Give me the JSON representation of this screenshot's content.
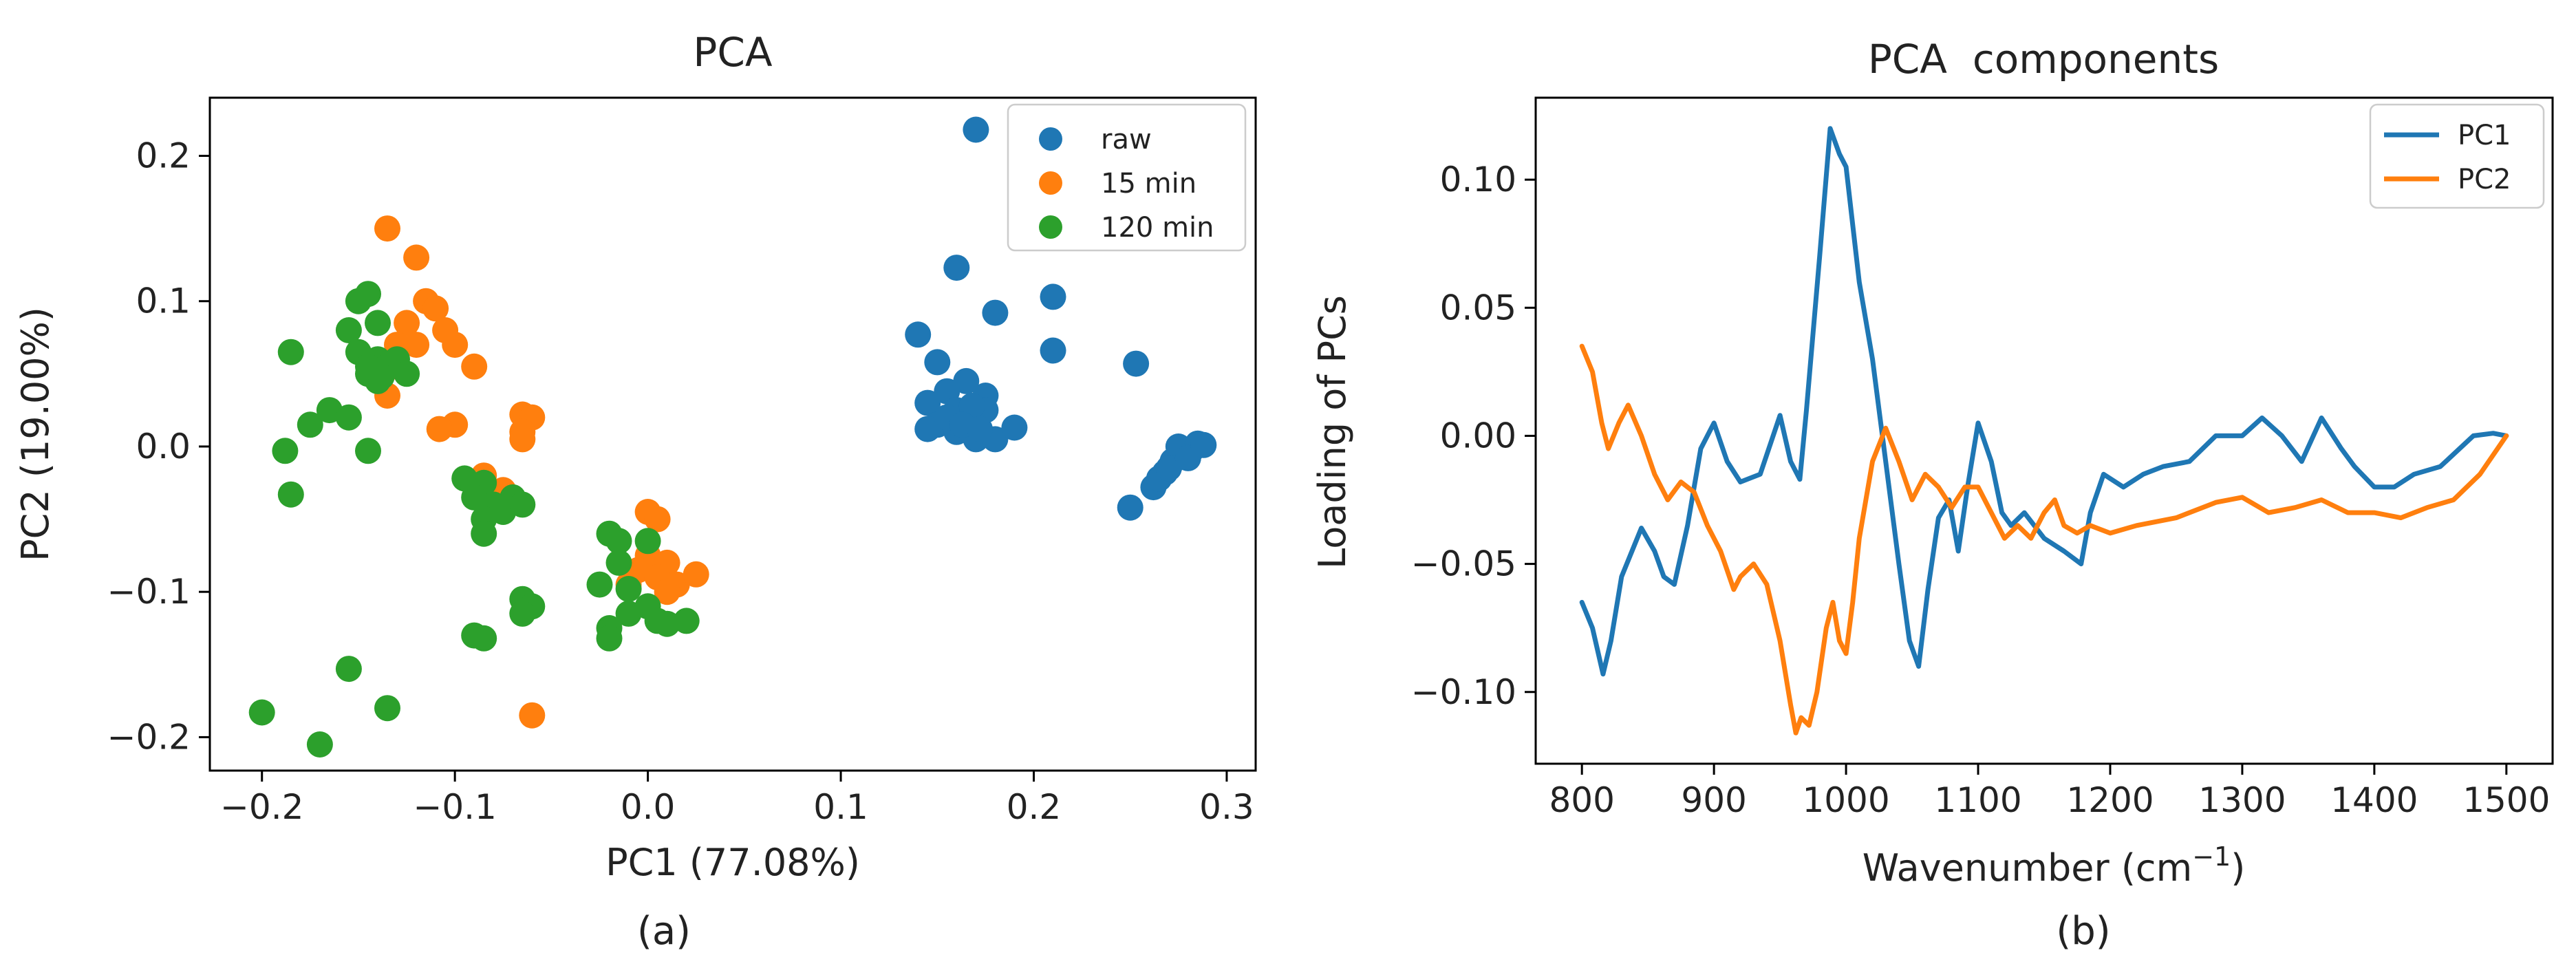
{
  "chart_data": [
    {
      "type": "scatter",
      "title": "PCA",
      "xlabel": "PC1 (77.08%)",
      "ylabel": "PC2 (19.00%)",
      "xlim": [
        -0.227,
        0.315
      ],
      "ylim": [
        -0.223,
        0.24
      ],
      "xticks": [
        -0.2,
        -0.1,
        0.0,
        0.1,
        0.2,
        0.3
      ],
      "xtick_labels": [
        "−0.2",
        "−0.1",
        "0.0",
        "0.1",
        "0.2",
        "0.3"
      ],
      "yticks": [
        -0.2,
        -0.1,
        0.0,
        0.1,
        0.2
      ],
      "ytick_labels": [
        "−0.2",
        "−0.1",
        "0.0",
        "0.1",
        "0.2"
      ],
      "legend_position": "top-right",
      "caption": "(a)",
      "series": [
        {
          "name": "raw",
          "color": "#1f77b4",
          "points": [
            [
              0.17,
              0.218
            ],
            [
              0.16,
              0.123
            ],
            [
              0.18,
              0.092
            ],
            [
              0.21,
              0.103
            ],
            [
              0.21,
              0.066
            ],
            [
              0.14,
              0.077
            ],
            [
              0.15,
              0.058
            ],
            [
              0.165,
              0.045
            ],
            [
              0.175,
              0.035
            ],
            [
              0.155,
              0.038
            ],
            [
              0.145,
              0.03
            ],
            [
              0.16,
              0.025
            ],
            [
              0.17,
              0.02
            ],
            [
              0.15,
              0.015
            ],
            [
              0.16,
              0.01
            ],
            [
              0.17,
              0.005
            ],
            [
              0.18,
              0.005
            ],
            [
              0.145,
              0.012
            ],
            [
              0.19,
              0.013
            ],
            [
              0.175,
              0.025
            ],
            [
              0.168,
              0.028
            ],
            [
              0.155,
              0.02
            ],
            [
              0.163,
              0.015
            ],
            [
              0.172,
              0.012
            ],
            [
              0.253,
              0.057
            ],
            [
              0.25,
              -0.042
            ],
            [
              0.262,
              -0.028
            ],
            [
              0.268,
              -0.018
            ],
            [
              0.272,
              -0.01
            ],
            [
              0.278,
              -0.005
            ],
            [
              0.282,
              -0.002
            ],
            [
              0.275,
              0.0
            ],
            [
              0.285,
              0.002
            ],
            [
              0.265,
              -0.022
            ],
            [
              0.27,
              -0.015
            ],
            [
              0.28,
              -0.008
            ],
            [
              0.288,
              0.001
            ]
          ]
        },
        {
          "name": "15 min",
          "color": "#ff7f0e",
          "points": [
            [
              -0.135,
              0.15
            ],
            [
              -0.12,
              0.13
            ],
            [
              -0.115,
              0.1
            ],
            [
              -0.11,
              0.095
            ],
            [
              -0.105,
              0.08
            ],
            [
              -0.125,
              0.085
            ],
            [
              -0.13,
              0.07
            ],
            [
              -0.12,
              0.07
            ],
            [
              -0.1,
              0.07
            ],
            [
              -0.09,
              0.055
            ],
            [
              -0.13,
              0.055
            ],
            [
              -0.135,
              0.035
            ],
            [
              -0.065,
              0.022
            ],
            [
              -0.06,
              0.02
            ],
            [
              -0.065,
              0.01
            ],
            [
              -0.065,
              0.005
            ],
            [
              -0.1,
              0.015
            ],
            [
              -0.108,
              0.012
            ],
            [
              -0.085,
              -0.02
            ],
            [
              -0.075,
              -0.03
            ],
            [
              -0.06,
              -0.185
            ],
            [
              0.0,
              -0.045
            ],
            [
              0.005,
              -0.05
            ],
            [
              0.0,
              -0.075
            ],
            [
              0.01,
              -0.08
            ],
            [
              -0.005,
              -0.085
            ],
            [
              0.005,
              -0.09
            ],
            [
              0.015,
              -0.095
            ],
            [
              0.025,
              -0.088
            ],
            [
              -0.01,
              -0.095
            ],
            [
              0.01,
              -0.1
            ]
          ]
        },
        {
          "name": "120 min",
          "color": "#2ca02c",
          "points": [
            [
              -0.185,
              0.065
            ],
            [
              -0.2,
              -0.183
            ],
            [
              -0.17,
              -0.205
            ],
            [
              -0.155,
              -0.153
            ],
            [
              -0.135,
              -0.18
            ],
            [
              -0.15,
              0.1
            ],
            [
              -0.145,
              0.105
            ],
            [
              -0.14,
              0.085
            ],
            [
              -0.155,
              0.08
            ],
            [
              -0.15,
              0.065
            ],
            [
              -0.14,
              0.06
            ],
            [
              -0.145,
              0.05
            ],
            [
              -0.135,
              0.055
            ],
            [
              -0.13,
              0.06
            ],
            [
              -0.125,
              0.05
            ],
            [
              -0.14,
              0.045
            ],
            [
              -0.145,
              0.055
            ],
            [
              -0.138,
              0.048
            ],
            [
              -0.165,
              0.025
            ],
            [
              -0.155,
              0.02
            ],
            [
              -0.175,
              0.015
            ],
            [
              -0.145,
              -0.003
            ],
            [
              -0.188,
              -0.003
            ],
            [
              -0.185,
              -0.033
            ],
            [
              -0.095,
              -0.022
            ],
            [
              -0.085,
              -0.025
            ],
            [
              -0.09,
              -0.035
            ],
            [
              -0.08,
              -0.04
            ],
            [
              -0.07,
              -0.035
            ],
            [
              -0.085,
              -0.05
            ],
            [
              -0.075,
              -0.045
            ],
            [
              -0.065,
              -0.04
            ],
            [
              -0.085,
              -0.06
            ],
            [
              -0.065,
              -0.105
            ],
            [
              -0.06,
              -0.11
            ],
            [
              -0.065,
              -0.115
            ],
            [
              -0.09,
              -0.13
            ],
            [
              -0.085,
              -0.132
            ],
            [
              -0.02,
              -0.06
            ],
            [
              -0.015,
              -0.065
            ],
            [
              0.0,
              -0.065
            ],
            [
              -0.015,
              -0.08
            ],
            [
              -0.025,
              -0.095
            ],
            [
              -0.01,
              -0.098
            ],
            [
              0.0,
              -0.11
            ],
            [
              -0.01,
              -0.115
            ],
            [
              0.005,
              -0.12
            ],
            [
              0.01,
              -0.122
            ],
            [
              0.02,
              -0.12
            ],
            [
              -0.02,
              -0.125
            ],
            [
              -0.02,
              -0.132
            ]
          ]
        }
      ]
    },
    {
      "type": "line",
      "title": "PCA  components",
      "xlabel_main": "Wavenumber (cm",
      "xlabel_sup": "−1",
      "xlabel_end": ")",
      "ylabel": "Loading of PCs",
      "xlim": [
        765,
        1535
      ],
      "ylim": [
        -0.128,
        0.132
      ],
      "xticks": [
        800,
        900,
        1000,
        1100,
        1200,
        1300,
        1400,
        1500
      ],
      "xtick_labels": [
        "800",
        "900",
        "1000",
        "1100",
        "1200",
        "1300",
        "1400",
        "1500"
      ],
      "yticks": [
        0.1,
        0.05,
        0.0,
        -0.05,
        -0.1
      ],
      "ytick_labels": [
        "0.10",
        "0.05",
        "0.00",
        "−0.05",
        "−0.10"
      ],
      "legend_position": "top-right",
      "caption": "(b)",
      "series": [
        {
          "name": "PC1",
          "color": "#1f77b4",
          "x": [
            800,
            808,
            816,
            822,
            830,
            845,
            855,
            862,
            870,
            880,
            890,
            900,
            910,
            920,
            935,
            950,
            958,
            965,
            970,
            980,
            988,
            995,
            1000,
            1010,
            1020,
            1030,
            1040,
            1048,
            1055,
            1062,
            1070,
            1078,
            1085,
            1092,
            1100,
            1110,
            1118,
            1125,
            1135,
            1150,
            1165,
            1178,
            1185,
            1195,
            1210,
            1225,
            1240,
            1260,
            1280,
            1300,
            1315,
            1330,
            1345,
            1360,
            1375,
            1385,
            1400,
            1415,
            1430,
            1450,
            1475,
            1490,
            1500
          ],
          "y": [
            -0.065,
            -0.075,
            -0.093,
            -0.08,
            -0.055,
            -0.036,
            -0.045,
            -0.055,
            -0.058,
            -0.035,
            -0.005,
            0.005,
            -0.01,
            -0.018,
            -0.015,
            0.008,
            -0.01,
            -0.017,
            0.01,
            0.07,
            0.12,
            0.11,
            0.105,
            0.06,
            0.03,
            -0.01,
            -0.05,
            -0.08,
            -0.09,
            -0.06,
            -0.032,
            -0.025,
            -0.045,
            -0.02,
            0.005,
            -0.01,
            -0.03,
            -0.035,
            -0.03,
            -0.04,
            -0.045,
            -0.05,
            -0.03,
            -0.015,
            -0.02,
            -0.015,
            -0.012,
            -0.01,
            0.0,
            0.0,
            0.007,
            0.0,
            -0.01,
            0.007,
            -0.005,
            -0.012,
            -0.02,
            -0.02,
            -0.015,
            -0.012,
            0.0,
            0.001,
            0.0
          ]
        },
        {
          "name": "PC2",
          "color": "#ff7f0e",
          "x": [
            800,
            808,
            815,
            820,
            828,
            835,
            845,
            855,
            865,
            875,
            885,
            895,
            905,
            915,
            920,
            930,
            940,
            950,
            958,
            962,
            966,
            972,
            978,
            985,
            990,
            995,
            1000,
            1005,
            1010,
            1020,
            1030,
            1040,
            1050,
            1060,
            1070,
            1080,
            1090,
            1100,
            1110,
            1120,
            1130,
            1140,
            1150,
            1158,
            1165,
            1175,
            1185,
            1200,
            1220,
            1250,
            1280,
            1300,
            1320,
            1340,
            1360,
            1380,
            1400,
            1420,
            1440,
            1460,
            1480,
            1500
          ],
          "y": [
            0.035,
            0.025,
            0.005,
            -0.005,
            0.005,
            0.012,
            0.0,
            -0.015,
            -0.025,
            -0.018,
            -0.022,
            -0.035,
            -0.045,
            -0.06,
            -0.055,
            -0.05,
            -0.058,
            -0.08,
            -0.105,
            -0.116,
            -0.11,
            -0.113,
            -0.1,
            -0.075,
            -0.065,
            -0.08,
            -0.085,
            -0.065,
            -0.04,
            -0.01,
            0.003,
            -0.01,
            -0.025,
            -0.015,
            -0.02,
            -0.028,
            -0.02,
            -0.02,
            -0.03,
            -0.04,
            -0.035,
            -0.04,
            -0.03,
            -0.025,
            -0.035,
            -0.038,
            -0.035,
            -0.038,
            -0.035,
            -0.032,
            -0.026,
            -0.024,
            -0.03,
            -0.028,
            -0.025,
            -0.03,
            -0.03,
            -0.032,
            -0.028,
            -0.025,
            -0.015,
            0.0
          ]
        }
      ]
    }
  ]
}
